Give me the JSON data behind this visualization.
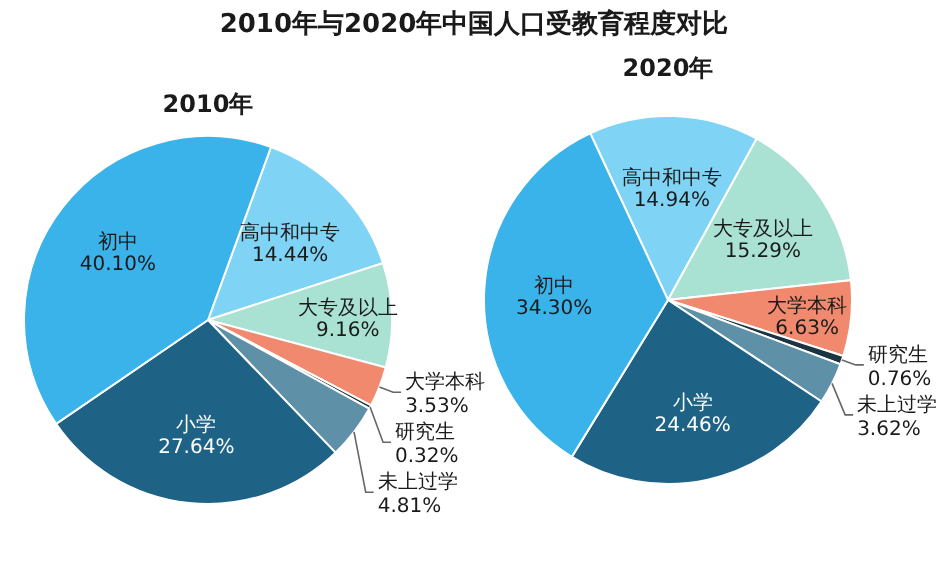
{
  "chart_data": [
    {
      "type": "pie",
      "title": "2010年",
      "annotations": [
        "2010年与2020年中国人口受教育程度对比"
      ],
      "categories": [
        "高中和中专",
        "大专及以上",
        "大学本科",
        "研究生",
        "未上过学",
        "小学",
        "初中"
      ],
      "values": [
        14.44,
        9.16,
        3.53,
        0.32,
        4.81,
        27.64,
        40.1
      ],
      "value_labels": [
        "14.44%",
        "9.16%",
        "3.53%",
        "0.32%",
        "4.81%",
        "27.64%",
        "40.10%"
      ],
      "colors": [
        "#7fd4f6",
        "#a9e2d3",
        "#f0896d",
        "#1c3442",
        "#5e91a8",
        "#1e6386",
        "#3ab2ea"
      ]
    },
    {
      "type": "pie",
      "title": "2020年",
      "categories": [
        "高中和中专",
        "大专及以上",
        "大学本科",
        "研究生",
        "未上过学",
        "小学",
        "初中"
      ],
      "values": [
        14.94,
        15.29,
        6.63,
        0.76,
        3.62,
        24.46,
        34.3
      ],
      "value_labels": [
        "14.94%",
        "15.29%",
        "6.63%",
        "0.76%",
        "3.62%",
        "24.46%",
        "34.30%"
      ],
      "colors": [
        "#7fd4f6",
        "#a9e2d3",
        "#f0896d",
        "#1c3442",
        "#5e91a8",
        "#1e6386",
        "#3ab2ea"
      ]
    }
  ]
}
